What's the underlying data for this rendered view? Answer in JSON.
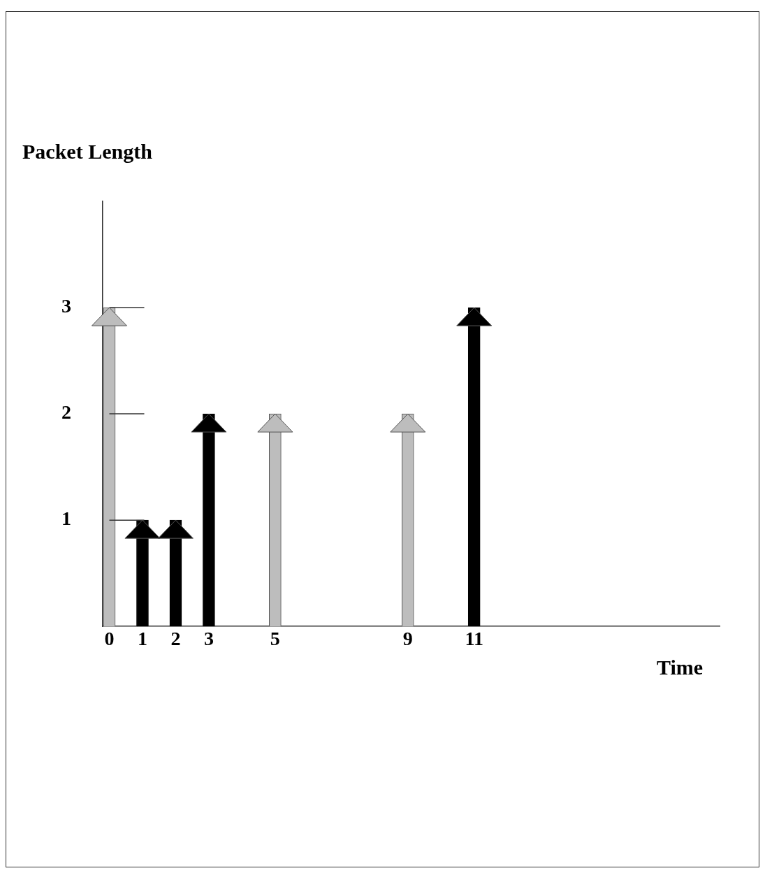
{
  "chart_data": {
    "type": "bar",
    "xlabel": "Time",
    "ylabel": "Packet Length",
    "x": [
      0,
      1,
      2,
      3,
      5,
      9,
      11
    ],
    "values": [
      3,
      1,
      1,
      2,
      2,
      2,
      3
    ],
    "colors": [
      "#bdbdbd",
      "#000000",
      "#000000",
      "#000000",
      "#bdbdbd",
      "#bdbdbd",
      "#000000"
    ],
    "xlim": [
      -0.2,
      18.4
    ],
    "xticks": [
      0,
      1,
      2,
      3,
      5,
      9,
      11
    ],
    "ylim": [
      0,
      4
    ],
    "yticks": [
      1,
      2,
      3
    ],
    "grid": false,
    "legend": false
  }
}
